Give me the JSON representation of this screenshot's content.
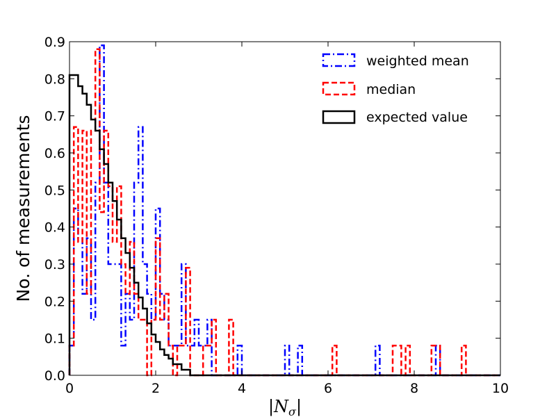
{
  "chart_data": {
    "type": "histogram",
    "xlabel": "|N_σ|",
    "xlabel_main": "|N",
    "xlabel_sub": "σ",
    "xlabel_end": "|",
    "ylabel": "No. of measurements",
    "xlim": [
      0,
      10
    ],
    "ylim": [
      0,
      0.9
    ],
    "xticks": [
      "0",
      "2",
      "4",
      "6",
      "8",
      "10"
    ],
    "yticks": [
      "0.0",
      "0.1",
      "0.2",
      "0.3",
      "0.4",
      "0.5",
      "0.6",
      "0.7",
      "0.8",
      "0.9"
    ],
    "legend_position": "top-right",
    "series": [
      {
        "name": "weighted mean",
        "color": "#0000ff",
        "linestyle": "dashdot",
        "steps": [
          [
            0.0,
            0.08
          ],
          [
            0.1,
            0.45
          ],
          [
            0.2,
            0.37
          ],
          [
            0.3,
            0.22
          ],
          [
            0.4,
            0.37
          ],
          [
            0.5,
            0.15
          ],
          [
            0.6,
            0.52
          ],
          [
            0.7,
            0.89
          ],
          [
            0.8,
            0.52
          ],
          [
            0.9,
            0.3
          ],
          [
            1.0,
            0.3
          ],
          [
            1.1,
            0.3
          ],
          [
            1.2,
            0.08
          ],
          [
            1.3,
            0.22
          ],
          [
            1.4,
            0.15
          ],
          [
            1.5,
            0.52
          ],
          [
            1.6,
            0.67
          ],
          [
            1.7,
            0.3
          ],
          [
            1.8,
            0.22
          ],
          [
            1.9,
            0.15
          ],
          [
            2.0,
            0.45
          ],
          [
            2.1,
            0.22
          ],
          [
            2.2,
            0.15
          ],
          [
            2.3,
            0.08
          ],
          [
            2.4,
            0.08
          ],
          [
            2.5,
            0.08
          ],
          [
            2.6,
            0.3
          ],
          [
            2.7,
            0.08
          ],
          [
            2.8,
            0.08
          ],
          [
            2.9,
            0.15
          ],
          [
            3.0,
            0.08
          ],
          [
            3.1,
            0.08
          ],
          [
            3.2,
            0.15
          ],
          [
            3.3,
            0.0
          ],
          [
            3.9,
            0.08
          ],
          [
            4.0,
            0.0
          ],
          [
            5.0,
            0.08
          ],
          [
            5.1,
            0.0
          ],
          [
            5.3,
            0.08
          ],
          [
            5.4,
            0.0
          ],
          [
            7.1,
            0.08
          ],
          [
            7.2,
            0.0
          ],
          [
            8.5,
            0.08
          ],
          [
            8.6,
            0.0
          ]
        ],
        "end": 10.0
      },
      {
        "name": "median",
        "color": "#ff0000",
        "linestyle": "dashed",
        "steps": [
          [
            0.0,
            0.08
          ],
          [
            0.1,
            0.67
          ],
          [
            0.2,
            0.36
          ],
          [
            0.3,
            0.66
          ],
          [
            0.4,
            0.22
          ],
          [
            0.5,
            0.66
          ],
          [
            0.6,
            0.88
          ],
          [
            0.7,
            0.44
          ],
          [
            0.8,
            0.66
          ],
          [
            0.9,
            0.51
          ],
          [
            1.0,
            0.36
          ],
          [
            1.1,
            0.51
          ],
          [
            1.2,
            0.3
          ],
          [
            1.3,
            0.22
          ],
          [
            1.4,
            0.36
          ],
          [
            1.5,
            0.22
          ],
          [
            1.6,
            0.15
          ],
          [
            1.7,
            0.15
          ],
          [
            1.8,
            0.0
          ],
          [
            1.9,
            0.15
          ],
          [
            2.0,
            0.37
          ],
          [
            2.1,
            0.15
          ],
          [
            2.2,
            0.22
          ],
          [
            2.3,
            0.08
          ],
          [
            2.4,
            0.0
          ],
          [
            2.5,
            0.08
          ],
          [
            2.6,
            0.08
          ],
          [
            2.7,
            0.29
          ],
          [
            2.8,
            0.0
          ],
          [
            3.1,
            0.08
          ],
          [
            3.3,
            0.15
          ],
          [
            3.4,
            0.0
          ],
          [
            3.7,
            0.15
          ],
          [
            3.8,
            0.0
          ],
          [
            6.1,
            0.08
          ],
          [
            6.2,
            0.0
          ],
          [
            7.5,
            0.08
          ],
          [
            7.7,
            0.0
          ],
          [
            7.8,
            0.08
          ],
          [
            7.9,
            0.0
          ],
          [
            8.4,
            0.08
          ],
          [
            8.6,
            0.0
          ],
          [
            9.1,
            0.08
          ],
          [
            9.2,
            0.0
          ]
        ],
        "end": 10.0
      },
      {
        "name": "expected value",
        "color": "#000000",
        "linestyle": "solid",
        "steps": [
          [
            0.0,
            0.81
          ],
          [
            0.1,
            0.81
          ],
          [
            0.2,
            0.78
          ],
          [
            0.3,
            0.76
          ],
          [
            0.4,
            0.73
          ],
          [
            0.5,
            0.69
          ],
          [
            0.6,
            0.66
          ],
          [
            0.7,
            0.61
          ],
          [
            0.8,
            0.57
          ],
          [
            0.9,
            0.52
          ],
          [
            1.0,
            0.47
          ],
          [
            1.1,
            0.42
          ],
          [
            1.2,
            0.37
          ],
          [
            1.3,
            0.33
          ],
          [
            1.4,
            0.29
          ],
          [
            1.5,
            0.25
          ],
          [
            1.6,
            0.21
          ],
          [
            1.7,
            0.18
          ],
          [
            1.8,
            0.14
          ],
          [
            1.9,
            0.11
          ],
          [
            2.0,
            0.09
          ],
          [
            2.1,
            0.07
          ],
          [
            2.2,
            0.055
          ],
          [
            2.3,
            0.045
          ],
          [
            2.4,
            0.03
          ],
          [
            2.5,
            0.03
          ],
          [
            2.6,
            0.015
          ],
          [
            2.7,
            0.015
          ],
          [
            2.8,
            0.0
          ]
        ],
        "end": 10.0
      }
    ]
  }
}
